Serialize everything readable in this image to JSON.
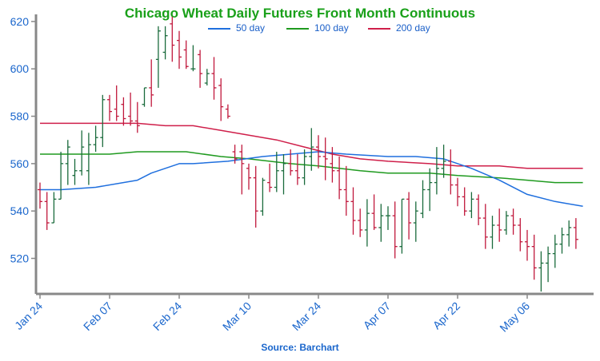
{
  "chart_data": {
    "type": "candlestick",
    "title": "Chicago Wheat Daily Futures Front Month Continuous",
    "source": "Source: Barchart",
    "colors": {
      "up": "#1a6b3c",
      "down": "#c0183c",
      "ma50": "#1f6fde",
      "ma100": "#1f9a1f",
      "ma200": "#cf1f4a",
      "axis_text": "#1a66cc"
    },
    "legend": [
      {
        "label": "50 day",
        "color": "#1f6fde"
      },
      {
        "label": "100 day",
        "color": "#1f9a1f"
      },
      {
        "label": "200 day",
        "color": "#cf1f4a"
      }
    ],
    "y_axis": {
      "min": 505,
      "max": 623,
      "ticks": [
        520,
        540,
        560,
        580,
        600,
        620
      ]
    },
    "x_axis": {
      "labels": [
        {
          "text": "Jan 24",
          "index": 0
        },
        {
          "text": "Feb 07",
          "index": 10
        },
        {
          "text": "Feb 24",
          "index": 20
        },
        {
          "text": "Mar 10",
          "index": 30
        },
        {
          "text": "Mar 24",
          "index": 40
        },
        {
          "text": "Apr 07",
          "index": 50
        },
        {
          "text": "Apr 22",
          "index": 60
        },
        {
          "text": "May 06",
          "index": 70
        }
      ]
    },
    "bars": [
      [
        549,
        552,
        541,
        544
      ],
      [
        544,
        548,
        532,
        535
      ],
      [
        535,
        548,
        535,
        545
      ],
      [
        545,
        565,
        545,
        560
      ],
      [
        560,
        570,
        551,
        567
      ],
      [
        555,
        562,
        551,
        557
      ],
      [
        557,
        574,
        555,
        567
      ],
      [
        557,
        573,
        551,
        568
      ],
      [
        568,
        576,
        565,
        571
      ],
      [
        571,
        589,
        567,
        587
      ],
      [
        587,
        589,
        578,
        582
      ],
      [
        583,
        593,
        578,
        580
      ],
      [
        585,
        588,
        576,
        579
      ],
      [
        580,
        590,
        576,
        578
      ],
      [
        578,
        586,
        573,
        576
      ],
      [
        585,
        592,
        584,
        592
      ],
      [
        592,
        604,
        584,
        589
      ],
      [
        604,
        618,
        592,
        616
      ],
      [
        607,
        618,
        604,
        614
      ],
      [
        619,
        622,
        603,
        610
      ],
      [
        612,
        616,
        600,
        605
      ],
      [
        608,
        612,
        600,
        601
      ],
      [
        600,
        610,
        599,
        600
      ],
      [
        606,
        608,
        592,
        598
      ],
      [
        594,
        600,
        593,
        598
      ],
      [
        598,
        605,
        587,
        592
      ],
      [
        593,
        596,
        578,
        584
      ],
      [
        583,
        585,
        579,
        580
      ],
      [
        565,
        568,
        560,
        562
      ],
      [
        565,
        568,
        547,
        560
      ],
      [
        558,
        560,
        549,
        554
      ],
      [
        554,
        559,
        533,
        540
      ],
      [
        540,
        554,
        538,
        553
      ],
      [
        552,
        560,
        548,
        550
      ],
      [
        550,
        565,
        548,
        557
      ],
      [
        557,
        564,
        547,
        560
      ],
      [
        560,
        566,
        555,
        557
      ],
      [
        557,
        564,
        551,
        554
      ],
      [
        554,
        566,
        551,
        563
      ],
      [
        563,
        575,
        557,
        567
      ],
      [
        567,
        572,
        558,
        563
      ],
      [
        563,
        571,
        553,
        562
      ],
      [
        560,
        567,
        552,
        557
      ],
      [
        557,
        563,
        545,
        549
      ],
      [
        549,
        559,
        538,
        544
      ],
      [
        544,
        550,
        530,
        536
      ],
      [
        536,
        541,
        529,
        532
      ],
      [
        532,
        545,
        525,
        539
      ],
      [
        539,
        547,
        532,
        533
      ],
      [
        533,
        543,
        527,
        538
      ],
      [
        538,
        542,
        532,
        538
      ],
      [
        538,
        544,
        520,
        525
      ],
      [
        525,
        545,
        522,
        545
      ],
      [
        545,
        548,
        528,
        535
      ],
      [
        535,
        544,
        527,
        540
      ],
      [
        539,
        553,
        537,
        549
      ],
      [
        549,
        558,
        540,
        552
      ],
      [
        552,
        567,
        547,
        558
      ],
      [
        558,
        568,
        554,
        561
      ],
      [
        561,
        566,
        547,
        551
      ],
      [
        551,
        554,
        542,
        546
      ],
      [
        546,
        550,
        538,
        540
      ],
      [
        540,
        548,
        537,
        545
      ],
      [
        545,
        547,
        534,
        537
      ],
      [
        537,
        543,
        524,
        529
      ],
      [
        529,
        538,
        524,
        534
      ],
      [
        534,
        541,
        527,
        532
      ],
      [
        532,
        540,
        530,
        538
      ],
      [
        538,
        541,
        530,
        534
      ],
      [
        534,
        537,
        523,
        527
      ],
      [
        527,
        532,
        519,
        525
      ],
      [
        525,
        530,
        511,
        516
      ],
      [
        516,
        523,
        506,
        518
      ],
      [
        518,
        525,
        510,
        522
      ],
      [
        522,
        530,
        516,
        526
      ],
      [
        526,
        533,
        522,
        530
      ],
      [
        530,
        536,
        525,
        533
      ],
      [
        533,
        537,
        524,
        528
      ]
    ],
    "ma50": [
      [
        0,
        549
      ],
      [
        3,
        549
      ],
      [
        8,
        550
      ],
      [
        14,
        553
      ],
      [
        16,
        556
      ],
      [
        18,
        558
      ],
      [
        20,
        560
      ],
      [
        22,
        560
      ],
      [
        27,
        561
      ],
      [
        32,
        563
      ],
      [
        36,
        564
      ],
      [
        40,
        565
      ],
      [
        44,
        564
      ],
      [
        50,
        563
      ],
      [
        54,
        563
      ],
      [
        58,
        562
      ],
      [
        62,
        558
      ],
      [
        66,
        553
      ],
      [
        70,
        547
      ],
      [
        74,
        544
      ],
      [
        78,
        542
      ]
    ],
    "ma100": [
      [
        0,
        564
      ],
      [
        4,
        564
      ],
      [
        10,
        564
      ],
      [
        14,
        565
      ],
      [
        18,
        565
      ],
      [
        21,
        565
      ],
      [
        26,
        563
      ],
      [
        30,
        562
      ],
      [
        36,
        560
      ],
      [
        40,
        559
      ],
      [
        46,
        557
      ],
      [
        50,
        556
      ],
      [
        56,
        556
      ],
      [
        60,
        555
      ],
      [
        66,
        554
      ],
      [
        70,
        553
      ],
      [
        74,
        552
      ],
      [
        78,
        552
      ]
    ],
    "ma200": [
      [
        0,
        577
      ],
      [
        4,
        577
      ],
      [
        10,
        577
      ],
      [
        14,
        577
      ],
      [
        18,
        576
      ],
      [
        22,
        576
      ],
      [
        26,
        574
      ],
      [
        30,
        572
      ],
      [
        34,
        570
      ],
      [
        38,
        567
      ],
      [
        42,
        564
      ],
      [
        46,
        562
      ],
      [
        50,
        561
      ],
      [
        56,
        560
      ],
      [
        60,
        559
      ],
      [
        66,
        559
      ],
      [
        70,
        558
      ],
      [
        74,
        558
      ],
      [
        78,
        558
      ]
    ]
  }
}
